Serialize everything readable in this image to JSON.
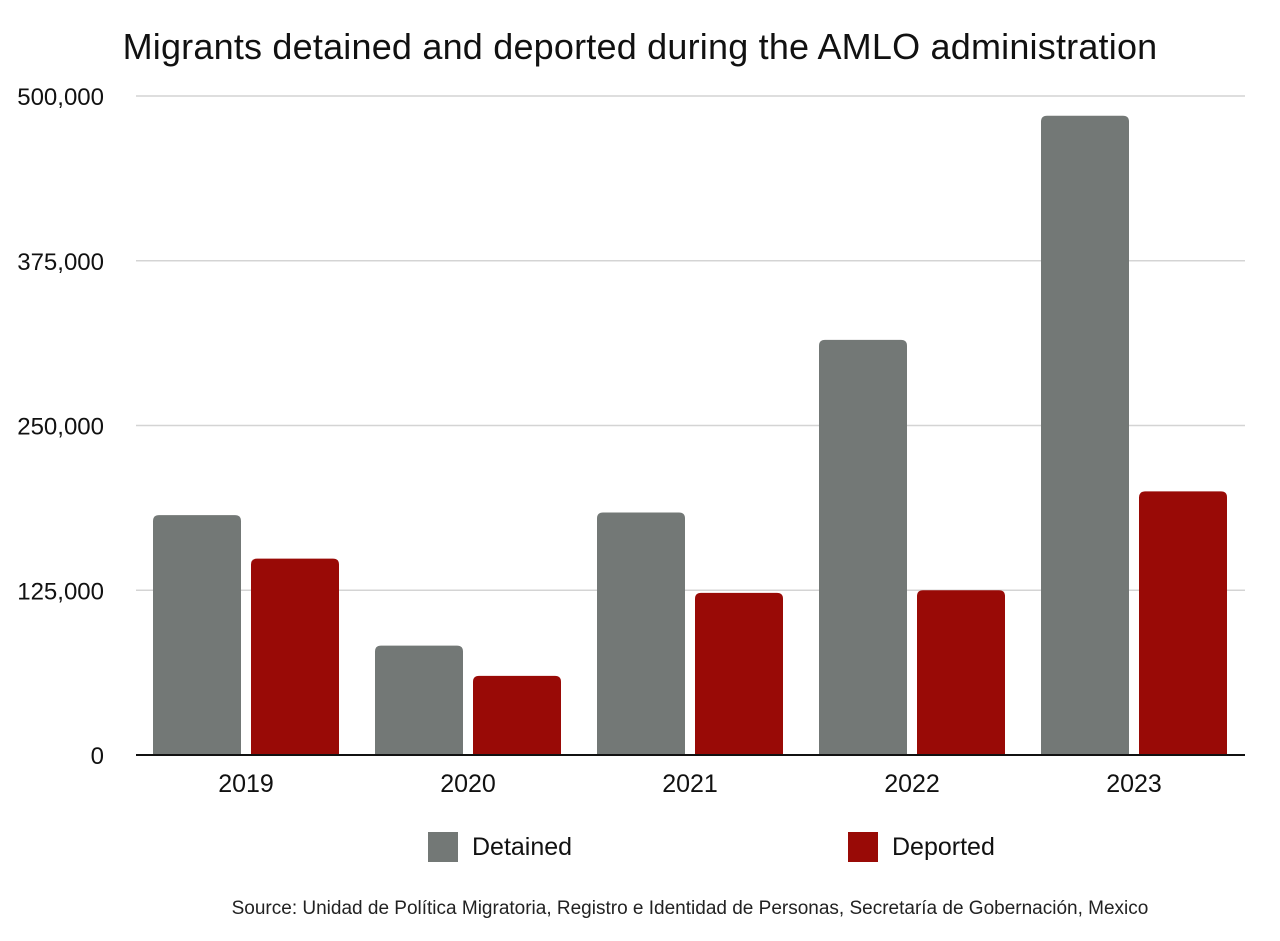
{
  "chart_data": {
    "type": "bar",
    "title": "Migrants detained and deported during the AMLO administration",
    "categories": [
      "2019",
      "2020",
      "2021",
      "2022",
      "2023"
    ],
    "series": [
      {
        "name": "Detained",
        "color": "#737876",
        "values": [
          182000,
          83000,
          184000,
          315000,
          485000
        ]
      },
      {
        "name": "Deported",
        "color": "#990a06",
        "values": [
          149000,
          60000,
          123000,
          125000,
          200000
        ]
      }
    ],
    "yticks": [
      "0",
      "125,000",
      "250,000",
      "375,000",
      "500,000"
    ],
    "ylim": [
      0,
      500000
    ],
    "grid": true,
    "legend": "bottom",
    "source": "Source: Unidad de Política Migratoria, Registro e Identidad de Personas, Secretaría de Gobernación, Mexico"
  }
}
